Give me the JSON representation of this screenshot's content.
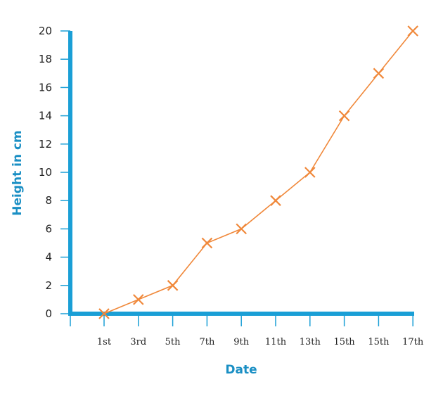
{
  "chart_data": {
    "type": "line",
    "title": "",
    "xlabel": "Date",
    "ylabel": "Height in cm",
    "x_ticks": [
      "1st",
      "3rd",
      "5th",
      "7th",
      "9th",
      "11th",
      "13th",
      "15th",
      "15th",
      "17th"
    ],
    "y_ticks": [
      "0",
      "2",
      "4",
      "6",
      "8",
      "10",
      "12",
      "14",
      "16",
      "18",
      "20"
    ],
    "ylim": [
      0,
      20
    ],
    "grid": false,
    "series": [
      {
        "values": [
          0,
          1,
          2,
          5,
          6,
          8,
          10,
          14,
          17,
          20
        ],
        "color": "#f0883a",
        "marker": "x"
      }
    ],
    "axis_color": "#1a9fd6",
    "axis_label_color": "#1a8fc4"
  }
}
